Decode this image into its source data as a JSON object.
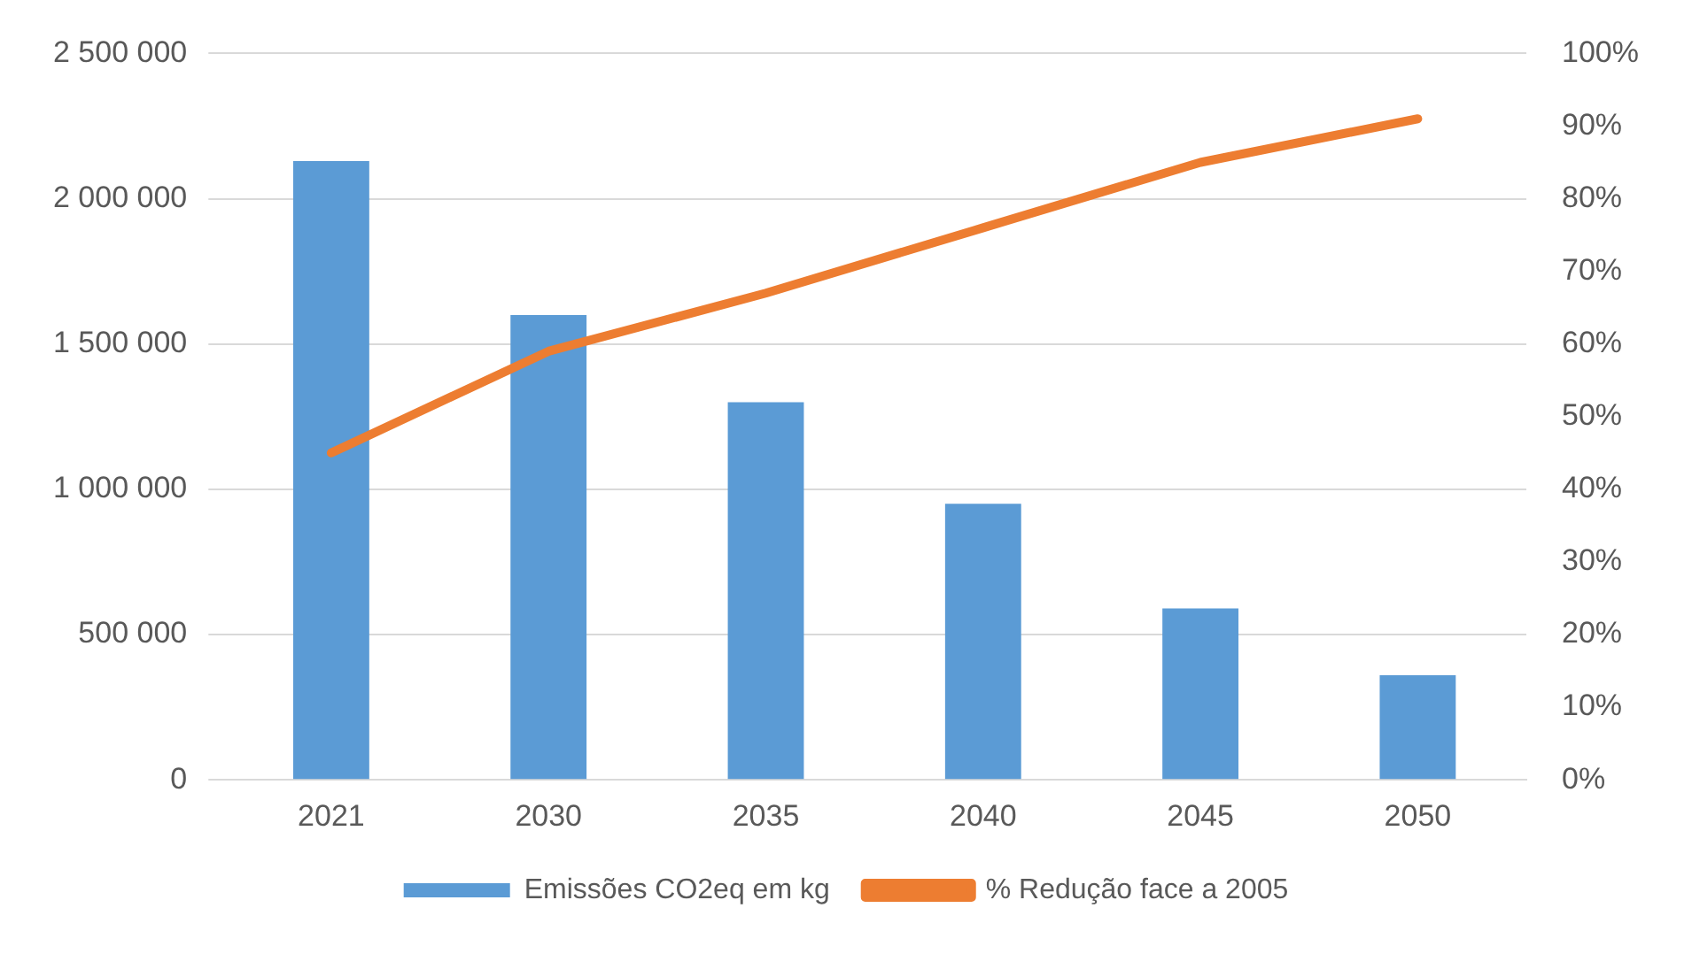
{
  "chart_data": {
    "type": "bar",
    "categories": [
      "2021",
      "2030",
      "2035",
      "2040",
      "2045",
      "2050"
    ],
    "series": [
      {
        "name": "Emissões CO2eq em kg",
        "color": "#5b9bd5",
        "values": [
          2130000,
          1600000,
          1300000,
          950000,
          590000,
          360000
        ]
      },
      {
        "name": "% Redução face a 2005",
        "type": "line",
        "axis": "y2",
        "color": "#ed7d31",
        "values": [
          45,
          59,
          67,
          76,
          85,
          91
        ]
      }
    ],
    "ylim": [
      0,
      2500000
    ],
    "yticks": [
      {
        "value": 0,
        "label": "0"
      },
      {
        "value": 500000,
        "label": "500 000"
      },
      {
        "value": 1000000,
        "label": "1 000 000"
      },
      {
        "value": 1500000,
        "label": "1 500 000"
      },
      {
        "value": 2000000,
        "label": "2 000 000"
      },
      {
        "value": 2500000,
        "label": "2 500 000"
      }
    ],
    "y2lim": [
      0,
      100
    ],
    "y2ticks": [
      {
        "value": 0,
        "label": "0%"
      },
      {
        "value": 10,
        "label": "10%"
      },
      {
        "value": 20,
        "label": "20%"
      },
      {
        "value": 30,
        "label": "30%"
      },
      {
        "value": 40,
        "label": "40%"
      },
      {
        "value": 50,
        "label": "50%"
      },
      {
        "value": 60,
        "label": "60%"
      },
      {
        "value": 70,
        "label": "70%"
      },
      {
        "value": 80,
        "label": "80%"
      },
      {
        "value": 90,
        "label": "90%"
      },
      {
        "value": 100,
        "label": "100%"
      }
    ],
    "grid": "y",
    "legend": "bottom",
    "marker": "none"
  }
}
